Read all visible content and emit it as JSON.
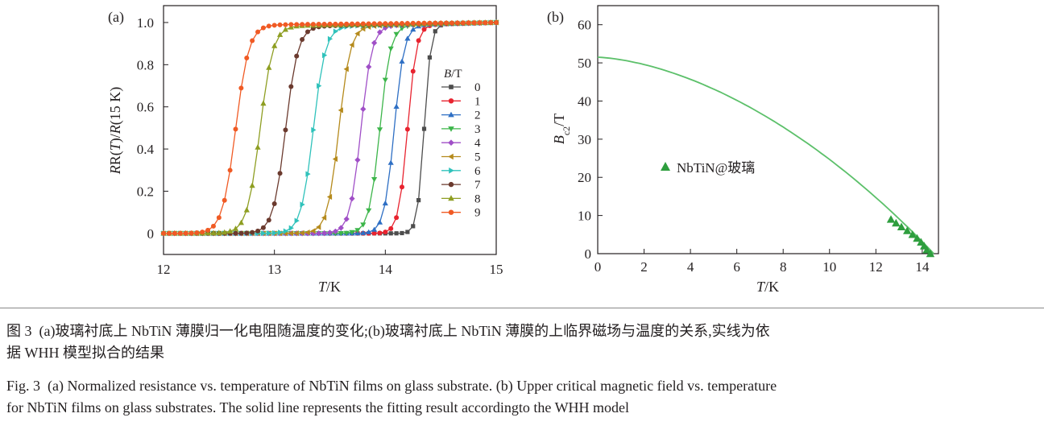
{
  "chart_data": [
    {
      "panel_label": "(a)",
      "type": "line",
      "xlabel_italic": "T",
      "xlabel_unit": "/K",
      "ylabel_parts": [
        "R(",
        "T",
        ")/",
        "R",
        "(15 K)"
      ],
      "xlim": [
        12,
        15
      ],
      "ylim": [
        -0.1,
        1.08
      ],
      "xticks": [
        "12",
        "13",
        "14",
        "15"
      ],
      "yticks": [
        "0",
        "0.2",
        "0.4",
        "0.6",
        "0.8",
        "1.0"
      ],
      "legend_title_italic": "B",
      "legend_title_unit": "/T",
      "legend_position": "right",
      "series": [
        {
          "name": "0",
          "color": "#4d4d4d",
          "marker": "square",
          "tc": 14.35,
          "width": 0.03,
          "onset": 0.96
        },
        {
          "name": "1",
          "color": "#e8232f",
          "marker": "circle",
          "tc": 14.2,
          "width": 0.04,
          "onset": 0.955
        },
        {
          "name": "2",
          "color": "#2e6fc4",
          "marker": "triangle-up",
          "tc": 14.08,
          "width": 0.045,
          "onset": 0.955
        },
        {
          "name": "3",
          "color": "#3cb54a",
          "marker": "triangle-down",
          "tc": 13.95,
          "width": 0.048,
          "onset": 0.955
        },
        {
          "name": "4",
          "color": "#a04fc7",
          "marker": "diamond",
          "tc": 13.78,
          "width": 0.05,
          "onset": 0.96
        },
        {
          "name": "5",
          "color": "#b58a1c",
          "marker": "triangle-left",
          "tc": 13.58,
          "width": 0.052,
          "onset": 0.96
        },
        {
          "name": "6",
          "color": "#2fc2bb",
          "marker": "triangle-right",
          "tc": 13.35,
          "width": 0.055,
          "onset": 0.965
        },
        {
          "name": "7",
          "color": "#6b3a2e",
          "marker": "hexagon",
          "tc": 13.1,
          "width": 0.056,
          "onset": 0.97
        },
        {
          "name": "8",
          "color": "#8e9e22",
          "marker": "star",
          "tc": 12.87,
          "width": 0.058,
          "onset": 0.975
        },
        {
          "name": "9",
          "color": "#f05a24",
          "marker": "circle",
          "tc": 12.65,
          "width": 0.06,
          "onset": 0.985
        }
      ]
    },
    {
      "panel_label": "(b)",
      "type": "line",
      "xlabel_italic": "T",
      "xlabel_unit": "/K",
      "ylabel_italic": "B",
      "ylabel_sub": "c2",
      "ylabel_unit": "/T",
      "xlim": [
        0,
        14.7
      ],
      "ylim": [
        0,
        65
      ],
      "xticks": [
        "0",
        "2",
        "4",
        "6",
        "8",
        "10",
        "12",
        "14"
      ],
      "yticks": [
        "0",
        "10",
        "20",
        "30",
        "40",
        "50",
        "60"
      ],
      "fit_line": {
        "name": "WHH fit",
        "color": "#5cc06a",
        "bc2_0": 51.5,
        "tc": 14.5
      },
      "points": {
        "name": "NbTiN@玻璃",
        "color": "#2e9e3e",
        "x": [
          12.65,
          12.87,
          13.1,
          13.35,
          13.58,
          13.78,
          13.95,
          14.08,
          14.2,
          14.35
        ],
        "y": [
          9,
          8,
          7,
          6,
          5,
          4,
          3,
          2,
          1,
          0
        ]
      },
      "legend_label": "NbTiN@玻璃"
    }
  ],
  "caption": {
    "cn_line1": "图 3  (a)玻璃衬底上 NbTiN 薄膜归一化电阻随温度的变化;(b)玻璃衬底上 NbTiN 薄膜的上临界磁场与温度的关系,实线为依",
    "cn_line2": "据 WHH 模型拟合的结果",
    "en_line1": "Fig. 3  (a) Normalized resistance vs. temperature of NbTiN films on glass substrate. (b) Upper critical magnetic field vs. temperature",
    "en_line2": "for NbTiN films on glass substrates. The solid line represents the fitting result accordingto the WHH model"
  }
}
